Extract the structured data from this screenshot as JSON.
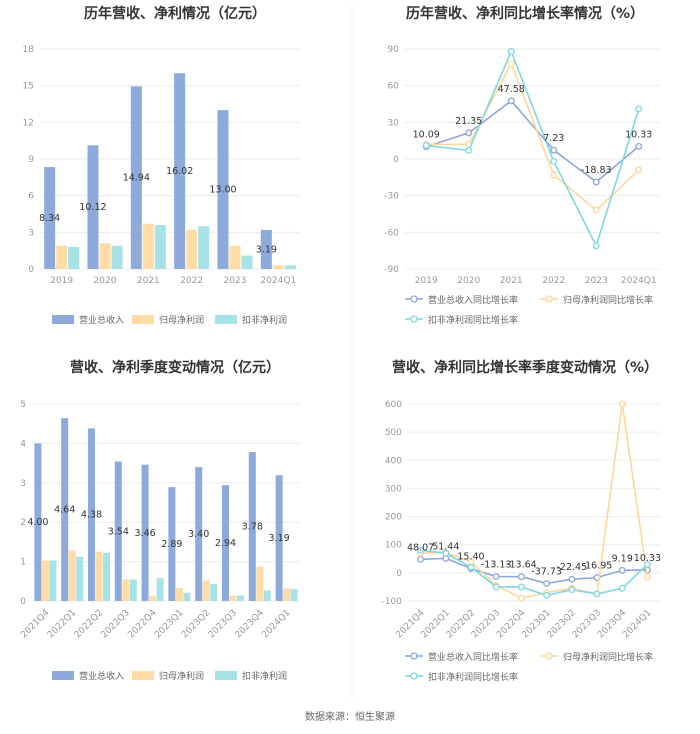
{
  "colors": {
    "revenue": "#8eaadb",
    "net_profit": "#ffdba6",
    "deducted_profit": "#a6e2e6",
    "revenue_line": "#8ba6da",
    "net_profit_line": "#ffd699",
    "deducted_line": "#7dd8e0"
  },
  "source": "数据来源：恒生聚源",
  "chart_data": [
    {
      "id": "annual_amount",
      "type": "bar",
      "title": "历年营收、净利情况（亿元）",
      "categories": [
        "2019",
        "2020",
        "2021",
        "2022",
        "2023",
        "2024Q1"
      ],
      "ylim": [
        0,
        18
      ],
      "yticks": [
        "0",
        "3",
        "6",
        "9",
        "12",
        "15",
        "18"
      ],
      "series": [
        {
          "name": "营业总收入",
          "values": [
            8.34,
            10.12,
            14.94,
            16.02,
            13.0,
            3.19
          ],
          "labels": [
            "8.34",
            "10.12",
            "14.94",
            "16.02",
            "13.00",
            "3.19"
          ]
        },
        {
          "name": "归母净利润",
          "values": [
            1.9,
            2.1,
            3.7,
            3.2,
            1.9,
            0.3
          ]
        },
        {
          "name": "扣非净利润",
          "values": [
            1.8,
            1.9,
            3.6,
            3.5,
            1.1,
            0.3
          ]
        }
      ],
      "legend_position": "bottom",
      "grid": true
    },
    {
      "id": "annual_growth",
      "type": "line",
      "title": "历年营收、净利同比增长率情况（%）",
      "categories": [
        "2019",
        "2020",
        "2021",
        "2022",
        "2023",
        "2024Q1"
      ],
      "ylim": [
        -90,
        90
      ],
      "yticks": [
        "-90",
        "-60",
        "-30",
        "0",
        "30",
        "60",
        "90"
      ],
      "series": [
        {
          "name": "营业总收入同比增长率",
          "values": [
            10.09,
            21.35,
            47.58,
            7.23,
            -18.83,
            10.33
          ],
          "labels": [
            "10.09",
            "21.35",
            "47.58",
            "7.23",
            "-18.83",
            "10.33"
          ]
        },
        {
          "name": "归母净利润同比增长率",
          "values": [
            12,
            12,
            78,
            -13,
            -42,
            -9
          ]
        },
        {
          "name": "扣非净利润同比增长率",
          "values": [
            11,
            7,
            88,
            -2,
            -71,
            41
          ]
        }
      ],
      "legend_position": "bottom",
      "grid": true
    },
    {
      "id": "quarterly_amount",
      "type": "bar",
      "title": "营收、净利季度变动情况（亿元）",
      "categories": [
        "2021Q4",
        "2022Q1",
        "2022Q2",
        "2022Q3",
        "2022Q4",
        "2023Q1",
        "2023Q2",
        "2023Q3",
        "2023Q4",
        "2024Q1"
      ],
      "ylim": [
        0,
        5
      ],
      "yticks": [
        "0",
        "1",
        "2",
        "3",
        "4",
        "5"
      ],
      "series": [
        {
          "name": "营业总收入",
          "values": [
            4.0,
            4.64,
            4.38,
            3.54,
            3.46,
            2.89,
            3.4,
            2.94,
            3.78,
            3.19
          ],
          "labels": [
            "4.00",
            "4.64",
            "4.38",
            "3.54",
            "3.46",
            "2.89",
            "3.40",
            "2.94",
            "3.78",
            "3.19"
          ]
        },
        {
          "name": "归母净利润",
          "values": [
            1.03,
            1.28,
            1.25,
            0.55,
            0.12,
            0.33,
            0.52,
            0.13,
            0.87,
            0.32
          ]
        },
        {
          "name": "扣非净利润",
          "values": [
            1.03,
            1.12,
            1.22,
            0.55,
            0.58,
            0.21,
            0.43,
            0.14,
            0.27,
            0.3
          ]
        }
      ],
      "legend_position": "bottom",
      "grid": true
    },
    {
      "id": "quarterly_growth",
      "type": "line",
      "title": "营收、净利同比增长率季度变动情况（%）",
      "categories": [
        "2021Q4",
        "2022Q1",
        "2022Q2",
        "2022Q3",
        "2022Q4",
        "2023Q1",
        "2023Q2",
        "2023Q3",
        "2023Q4",
        "2024Q1"
      ],
      "ylim": [
        -100,
        600
      ],
      "yticks": [
        "-100",
        "0",
        "100",
        "200",
        "300",
        "400",
        "500",
        "600"
      ],
      "series": [
        {
          "name": "营业总收入同比增长率",
          "values": [
            48.07,
            51.44,
            15.4,
            -13.13,
            -13.64,
            -37.73,
            -22.45,
            -16.95,
            9.19,
            10.33
          ],
          "labels": [
            "48.07",
            "51.44",
            "15.40",
            "-13.13",
            "-13.64",
            "-37.73",
            "-22.45",
            "-16.95",
            "9.19",
            "10.33"
          ]
        },
        {
          "name": "归母净利润同比增长率",
          "values": [
            70,
            72,
            40,
            -45,
            -90,
            -70,
            -55,
            -75,
            600,
            -15
          ]
        },
        {
          "name": "扣非净利润同比增长率",
          "values": [
            80,
            70,
            20,
            -50,
            -50,
            -80,
            -60,
            -75,
            -55,
            30
          ]
        }
      ],
      "legend_position": "bottom",
      "grid": true
    }
  ]
}
